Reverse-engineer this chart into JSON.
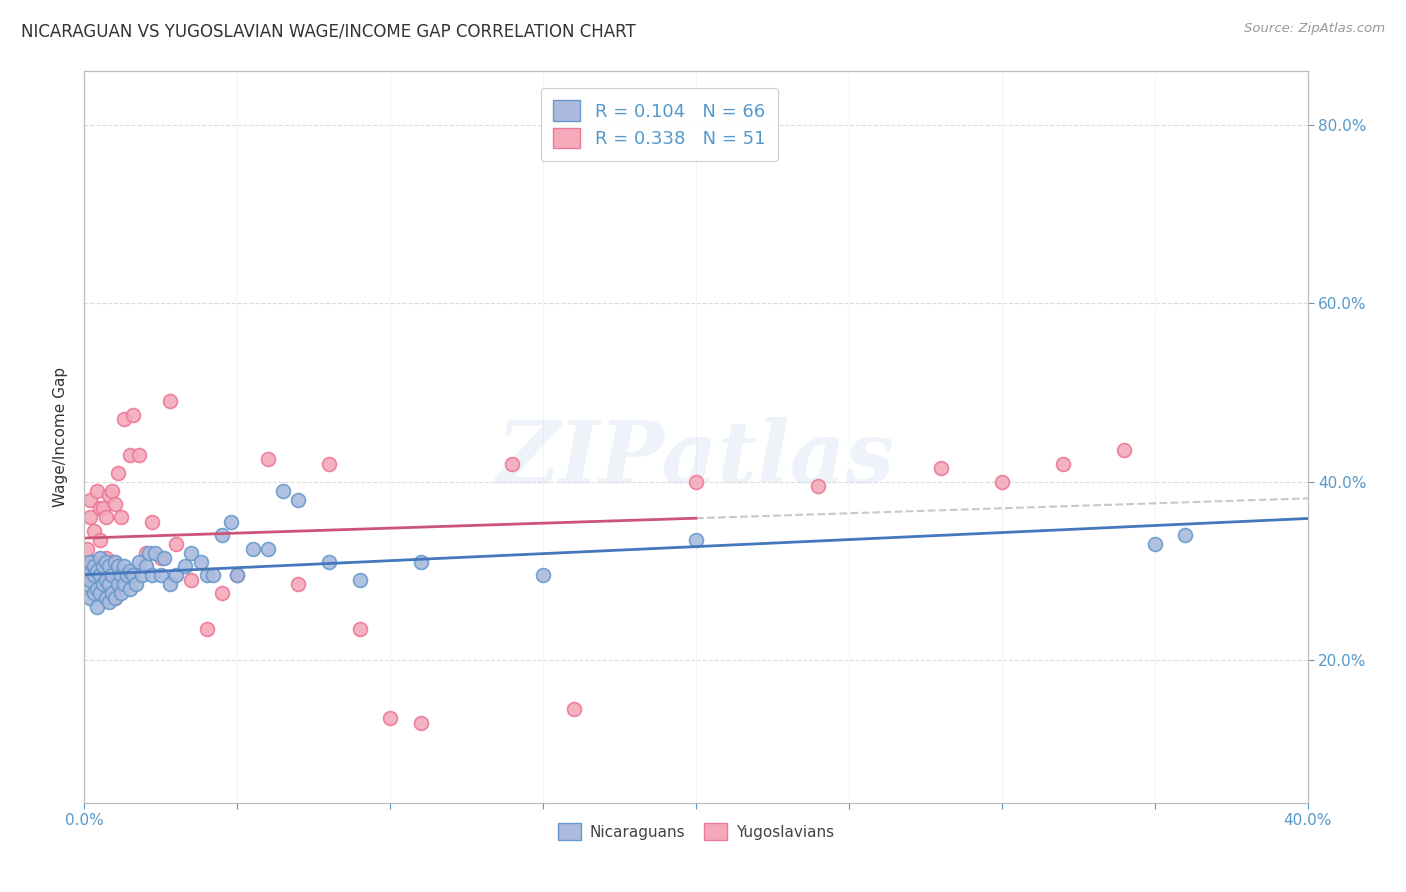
{
  "title": "NICARAGUAN VS YUGOSLAVIAN WAGE/INCOME GAP CORRELATION CHART",
  "source": "Source: ZipAtlas.com",
  "ylabel": "Wage/Income Gap",
  "watermark": "ZIPatlas",
  "legend_entry_1": "R = 0.104   N = 66",
  "legend_entry_2": "R = 0.338   N = 51",
  "legend_labels": [
    "Nicaraguans",
    "Yugoslavians"
  ],
  "blue_color": "#6699cc",
  "pink_color": "#ee7799",
  "blue_fill": "#aabbdd",
  "pink_fill": "#f4aabb",
  "trendline_blue_color": "#4477bb",
  "trendline_pink_color": "#cc5577",
  "trendline_dashed_color": "#bbbbbb",
  "background_color": "#ffffff",
  "grid_color": "#dddddd",
  "axis_color": "#bbbbbb",
  "title_color": "#333333",
  "source_color": "#999999",
  "label_color": "#5599cc",
  "xmin": 0.0,
  "xmax": 0.4,
  "ymin": 0.04,
  "ymax": 0.86,
  "yticks": [
    0.2,
    0.4,
    0.6,
    0.8
  ],
  "xticks": [
    0.0,
    0.05,
    0.1,
    0.15,
    0.2,
    0.25,
    0.3,
    0.35,
    0.4
  ],
  "nicaraguan_x": [
    0.001,
    0.001,
    0.002,
    0.002,
    0.002,
    0.003,
    0.003,
    0.003,
    0.004,
    0.004,
    0.004,
    0.005,
    0.005,
    0.005,
    0.006,
    0.006,
    0.007,
    0.007,
    0.007,
    0.008,
    0.008,
    0.008,
    0.009,
    0.009,
    0.01,
    0.01,
    0.011,
    0.011,
    0.012,
    0.012,
    0.013,
    0.013,
    0.014,
    0.015,
    0.015,
    0.016,
    0.017,
    0.018,
    0.019,
    0.02,
    0.021,
    0.022,
    0.023,
    0.025,
    0.026,
    0.028,
    0.03,
    0.033,
    0.035,
    0.038,
    0.04,
    0.042,
    0.045,
    0.048,
    0.05,
    0.055,
    0.06,
    0.065,
    0.07,
    0.08,
    0.09,
    0.11,
    0.15,
    0.2,
    0.35,
    0.36
  ],
  "nicaraguan_y": [
    0.285,
    0.295,
    0.27,
    0.29,
    0.31,
    0.275,
    0.295,
    0.305,
    0.26,
    0.28,
    0.3,
    0.275,
    0.295,
    0.315,
    0.285,
    0.305,
    0.27,
    0.29,
    0.31,
    0.265,
    0.285,
    0.305,
    0.275,
    0.295,
    0.27,
    0.31,
    0.285,
    0.305,
    0.275,
    0.295,
    0.285,
    0.305,
    0.295,
    0.28,
    0.3,
    0.295,
    0.285,
    0.31,
    0.295,
    0.305,
    0.32,
    0.295,
    0.32,
    0.295,
    0.315,
    0.285,
    0.295,
    0.305,
    0.32,
    0.31,
    0.295,
    0.295,
    0.34,
    0.355,
    0.295,
    0.325,
    0.325,
    0.39,
    0.38,
    0.31,
    0.29,
    0.31,
    0.295,
    0.335,
    0.33,
    0.34
  ],
  "yugoslavian_x": [
    0.001,
    0.001,
    0.002,
    0.002,
    0.002,
    0.003,
    0.003,
    0.004,
    0.004,
    0.005,
    0.005,
    0.006,
    0.006,
    0.007,
    0.007,
    0.008,
    0.008,
    0.009,
    0.009,
    0.01,
    0.01,
    0.011,
    0.012,
    0.013,
    0.014,
    0.015,
    0.016,
    0.018,
    0.02,
    0.022,
    0.025,
    0.028,
    0.03,
    0.035,
    0.04,
    0.045,
    0.05,
    0.06,
    0.07,
    0.08,
    0.09,
    0.1,
    0.11,
    0.14,
    0.16,
    0.2,
    0.24,
    0.28,
    0.3,
    0.32,
    0.34
  ],
  "yugoslavian_y": [
    0.305,
    0.325,
    0.295,
    0.36,
    0.38,
    0.31,
    0.345,
    0.305,
    0.39,
    0.335,
    0.37,
    0.29,
    0.37,
    0.315,
    0.36,
    0.29,
    0.385,
    0.31,
    0.39,
    0.27,
    0.375,
    0.41,
    0.36,
    0.47,
    0.295,
    0.43,
    0.475,
    0.43,
    0.32,
    0.355,
    0.315,
    0.49,
    0.33,
    0.29,
    0.235,
    0.275,
    0.295,
    0.425,
    0.285,
    0.42,
    0.235,
    0.135,
    0.13,
    0.42,
    0.145,
    0.4,
    0.395,
    0.415,
    0.4,
    0.42,
    0.435
  ]
}
